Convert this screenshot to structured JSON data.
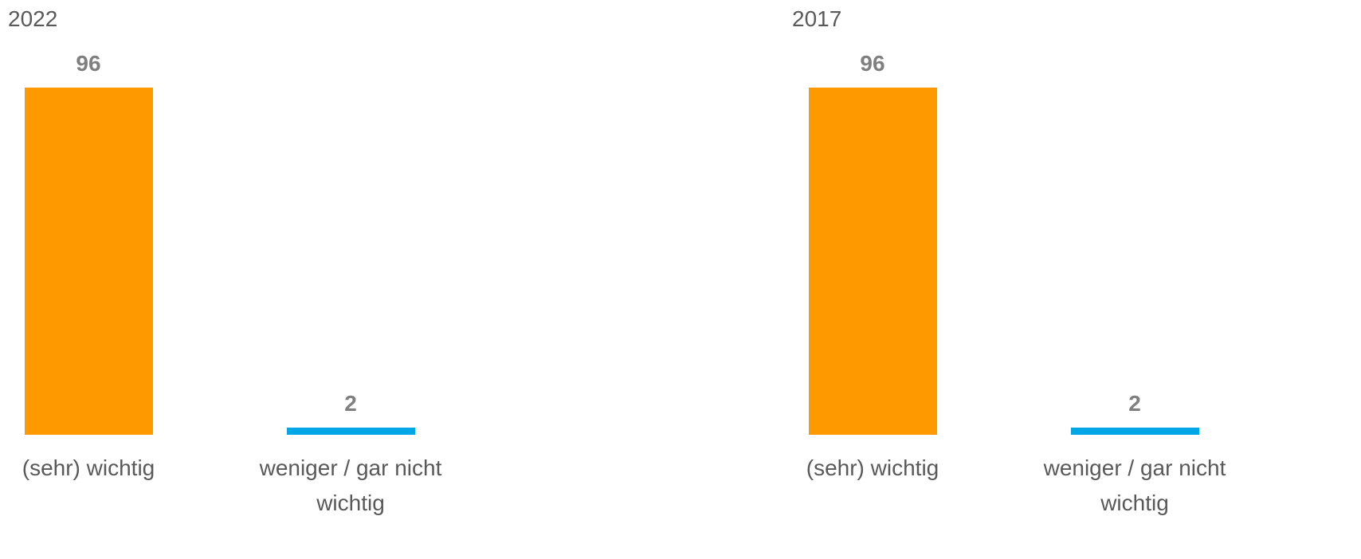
{
  "chart_data": [
    {
      "type": "bar",
      "title": "2022",
      "categories": [
        "(sehr) wichtig",
        "weniger / gar nicht wichtig"
      ],
      "values": [
        96,
        2
      ],
      "colors": [
        "#ff9900",
        "#00a6e6"
      ],
      "ylim": [
        0,
        96
      ]
    },
    {
      "type": "bar",
      "title": "2017",
      "categories": [
        "(sehr) wichtig",
        "weniger / gar nicht wichtig"
      ],
      "values": [
        96,
        2
      ],
      "colors": [
        "#ff9900",
        "#00a6e6"
      ],
      "ylim": [
        0,
        96
      ]
    }
  ]
}
